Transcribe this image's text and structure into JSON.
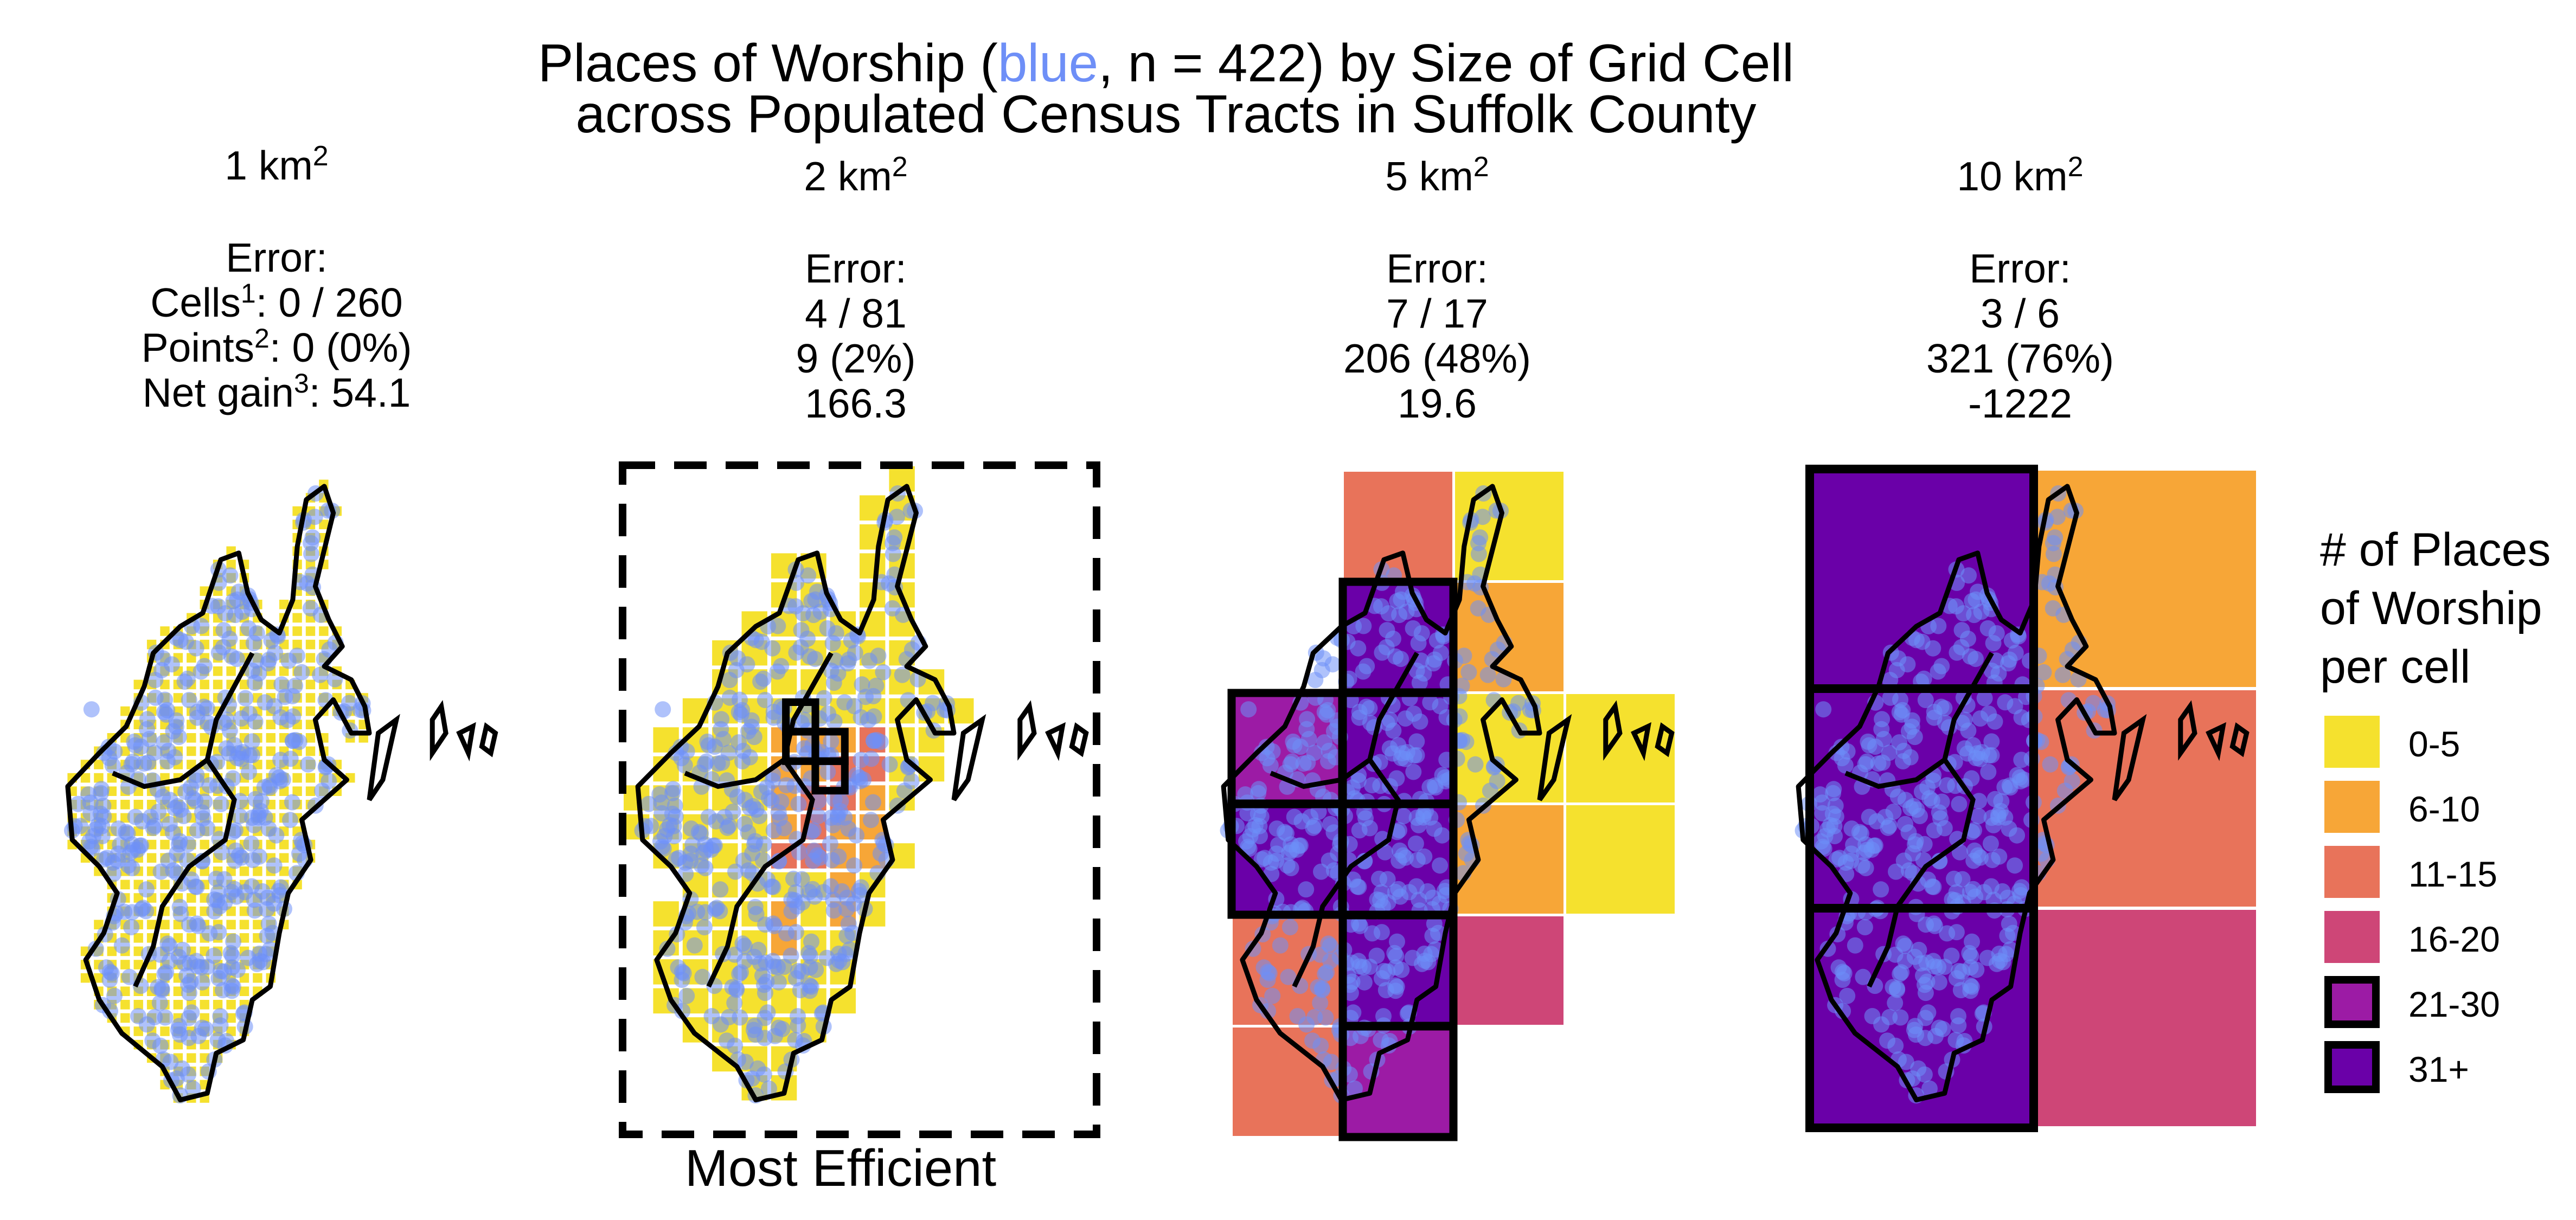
{
  "title": {
    "line1_pre": "Places of Worship (",
    "line1_blue": "blue",
    "line1_post": ", n = 422) by Size of Grid Cell",
    "line2": "across Populated Census Tracts in Suffolk County"
  },
  "facets": [
    {
      "size": "1 km",
      "size_sup": "2",
      "error_label": "Error:",
      "cells_label": "Cells",
      "cells_sup": "1",
      "cells_value": ": 0 / 260",
      "points_label": "Points",
      "points_sup": "2",
      "points_value": ": 0 (0%)",
      "gain_label": "Net gain",
      "gain_sup": "3",
      "gain_value": ": 54.1"
    },
    {
      "size": "2 km",
      "size_sup": "2",
      "error_label": "Error:",
      "cells_value": "4 / 81",
      "points_value": "9 (2%)",
      "gain_value": "166.3"
    },
    {
      "size": "5 km",
      "size_sup": "2",
      "error_label": "Error:",
      "cells_value": "7 / 17",
      "points_value": "206 (48%)",
      "gain_value": "19.6"
    },
    {
      "size": "10 km",
      "size_sup": "2",
      "error_label": "Error:",
      "cells_value": "3 / 6",
      "points_value": "321 (76%)",
      "gain_value": "-1222"
    }
  ],
  "caption": "Most Efficient",
  "legend": {
    "title_lines": [
      "# of Places",
      "of Worship",
      "per cell"
    ],
    "items": [
      {
        "label": "0-5",
        "color": "#f5e12e",
        "outlined": false
      },
      {
        "label": "6-10",
        "color": "#f7a637",
        "outlined": false
      },
      {
        "label": "11-15",
        "color": "#e8735a",
        "outlined": false
      },
      {
        "label": "16-20",
        "color": "#ce4677",
        "outlined": false
      },
      {
        "label": "21-30",
        "color": "#9c1ba5",
        "outlined": true
      },
      {
        "label": "31+",
        "color": "#6a00a8",
        "outlined": true
      }
    ]
  },
  "colors": {
    "points": "#6e8ff7",
    "boundary": "#000000",
    "highlight_box": "#000000"
  },
  "chart_data": {
    "type": "heatmap",
    "description_of_marks": "Gridded counts of places of worship over Suffolk County census tracts, one facet per grid cell size",
    "bins": [
      "0-5",
      "6-10",
      "11-15",
      "16-20",
      "21-30",
      "31+"
    ],
    "n_points": 422,
    "facets": [
      {
        "cell_size_km2": 1,
        "cells_error": "0 / 260",
        "points_error": "0 (0%)",
        "net_gain": 54.1
      },
      {
        "cell_size_km2": 2,
        "cells_error": "4 / 81",
        "points_error": "9 (2%)",
        "net_gain": 166.3,
        "highlighted": "Most Efficient"
      },
      {
        "cell_size_km2": 5,
        "cells_error": "7 / 17",
        "points_error": "206 (48%)",
        "net_gain": 19.6,
        "cells": [
          {
            "col": 0,
            "row": 0,
            "bin": "11-15"
          },
          {
            "col": 1,
            "row": 0,
            "bin": "0-5"
          },
          {
            "col": 0,
            "row": 1,
            "bin": "31+"
          },
          {
            "col": 1,
            "row": 1,
            "bin": "6-10"
          },
          {
            "col": -1,
            "row": 2,
            "bin": "21-30"
          },
          {
            "col": 0,
            "row": 2,
            "bin": "31+"
          },
          {
            "col": 1,
            "row": 2,
            "bin": "0-5"
          },
          {
            "col": 2,
            "row": 2,
            "bin": "0-5"
          },
          {
            "col": -1,
            "row": 3,
            "bin": "31+"
          },
          {
            "col": 0,
            "row": 3,
            "bin": "31+"
          },
          {
            "col": 1,
            "row": 3,
            "bin": "6-10"
          },
          {
            "col": 2,
            "row": 3,
            "bin": "0-5"
          },
          {
            "col": -1,
            "row": 4,
            "bin": "11-15"
          },
          {
            "col": 0,
            "row": 4,
            "bin": "31+"
          },
          {
            "col": 1,
            "row": 4,
            "bin": "16-20"
          },
          {
            "col": -1,
            "row": 5,
            "bin": "11-15"
          },
          {
            "col": 0,
            "row": 5,
            "bin": "21-30"
          }
        ]
      },
      {
        "cell_size_km2": 10,
        "cells_error": "3 / 6",
        "points_error": "321 (76%)",
        "net_gain": -1222,
        "cells": [
          {
            "col": 0,
            "row": 0,
            "bin": "31+"
          },
          {
            "col": 1,
            "row": 0,
            "bin": "6-10"
          },
          {
            "col": 0,
            "row": 1,
            "bin": "31+"
          },
          {
            "col": 1,
            "row": 1,
            "bin": "11-15"
          },
          {
            "col": 0,
            "row": 2,
            "bin": "31+"
          },
          {
            "col": 1,
            "row": 2,
            "bin": "16-20"
          }
        ]
      }
    ]
  }
}
